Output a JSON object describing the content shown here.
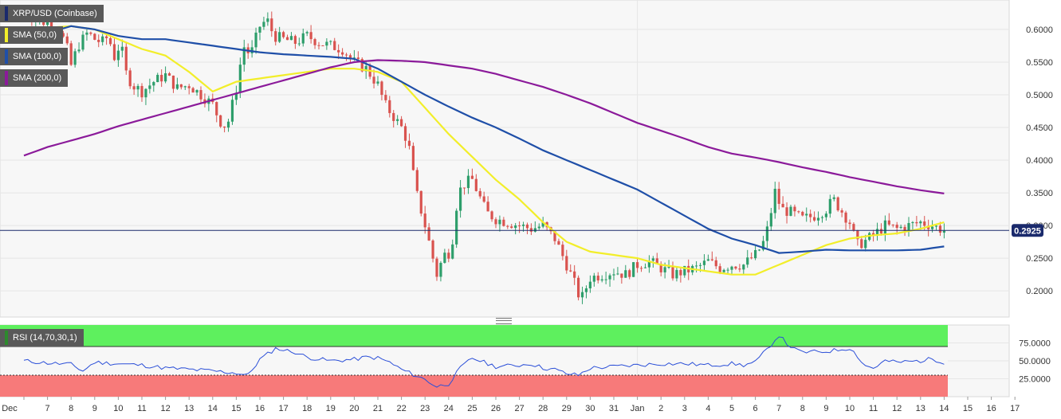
{
  "main_legend": {
    "symbol": "XRP/USD (Coinbase)",
    "sma50": {
      "label": "SMA (50,0)",
      "color": "#f2ee2a"
    },
    "sma100": {
      "label": "SMA (100,0)",
      "color": "#1f4fa8"
    },
    "sma200": {
      "label": "SMA (200,0)",
      "color": "#8b1a9a"
    }
  },
  "rsi_legend": {
    "label": "RSI (14,70,30,1)",
    "color": "#2d8a2d"
  },
  "colors": {
    "up": "#2e9e6b",
    "down": "#d9534f",
    "rsi_line": "#2b4fd8",
    "price_line": "#1a2a6c"
  },
  "chart_data": [
    {
      "type": "candlestick",
      "title": "XRP/USD (Coinbase)",
      "ylim": [
        0.16,
        0.645
      ],
      "y_ticks": [
        0.2,
        0.25,
        0.3,
        0.35,
        0.4,
        0.45,
        0.5,
        0.55,
        0.6
      ],
      "y_tick_labels": [
        "0.2000",
        "0.2500",
        "0.3000",
        "0.3500",
        "0.4000",
        "0.4500",
        "0.5000",
        "0.5500",
        "0.6000"
      ],
      "current_price": 0.2925,
      "current_price_label": "0.2925",
      "x_tick_labels": [
        "Dec",
        "7",
        "8",
        "9",
        "10",
        "11",
        "12",
        "13",
        "14",
        "15",
        "16",
        "17",
        "18",
        "19",
        "20",
        "21",
        "22",
        "23",
        "24",
        "25",
        "26",
        "27",
        "28",
        "29",
        "30",
        "31",
        "Jan",
        "2",
        "3",
        "4",
        "5",
        "6",
        "7",
        "8",
        "9",
        "10",
        "11",
        "12",
        "13",
        "14",
        "15",
        "16",
        "17"
      ],
      "close_path": [
        [
          0,
          0.63
        ],
        [
          0.5,
          0.615
        ],
        [
          1,
          0.61
        ],
        [
          1.5,
          0.6
        ],
        [
          1.8,
          0.575
        ],
        [
          2,
          0.545
        ],
        [
          2.3,
          0.575
        ],
        [
          2.7,
          0.595
        ],
        [
          3,
          0.585
        ],
        [
          3.3,
          0.58
        ],
        [
          3.6,
          0.59
        ],
        [
          3.8,
          0.555
        ],
        [
          4.1,
          0.58
        ],
        [
          4.3,
          0.535
        ],
        [
          4.6,
          0.515
        ],
        [
          5,
          0.505
        ],
        [
          5.5,
          0.52
        ],
        [
          6,
          0.53
        ],
        [
          6.5,
          0.51
        ],
        [
          7,
          0.515
        ],
        [
          7.5,
          0.5
        ],
        [
          8,
          0.485
        ],
        [
          8.3,
          0.46
        ],
        [
          8.6,
          0.45
        ],
        [
          8.8,
          0.48
        ],
        [
          9,
          0.51
        ],
        [
          9.3,
          0.575
        ],
        [
          9.6,
          0.56
        ],
        [
          10,
          0.605
        ],
        [
          10.3,
          0.615
        ],
        [
          10.6,
          0.59
        ],
        [
          11,
          0.585
        ],
        [
          11.5,
          0.58
        ],
        [
          12,
          0.59
        ],
        [
          12.5,
          0.58
        ],
        [
          13,
          0.575
        ],
        [
          13.5,
          0.57
        ],
        [
          14,
          0.55
        ],
        [
          14.5,
          0.54
        ],
        [
          15,
          0.515
        ],
        [
          15.3,
          0.485
        ],
        [
          15.6,
          0.47
        ],
        [
          16,
          0.45
        ],
        [
          16.3,
          0.425
        ],
        [
          16.6,
          0.355
        ],
        [
          17,
          0.3
        ],
        [
          17.3,
          0.255
        ],
        [
          17.5,
          0.225
        ],
        [
          17.8,
          0.255
        ],
        [
          18.1,
          0.26
        ],
        [
          18.4,
          0.35
        ],
        [
          18.7,
          0.365
        ],
        [
          19,
          0.37
        ],
        [
          19.3,
          0.345
        ],
        [
          19.6,
          0.32
        ],
        [
          20,
          0.31
        ],
        [
          20.5,
          0.305
        ],
        [
          21,
          0.3
        ],
        [
          21.5,
          0.295
        ],
        [
          22,
          0.3
        ],
        [
          22.5,
          0.28
        ],
        [
          23,
          0.24
        ],
        [
          23.3,
          0.215
        ],
        [
          23.6,
          0.185
        ],
        [
          24,
          0.22
        ],
        [
          24.5,
          0.225
        ],
        [
          25,
          0.23
        ],
        [
          25.5,
          0.225
        ],
        [
          26,
          0.24
        ],
        [
          26.5,
          0.245
        ],
        [
          27,
          0.235
        ],
        [
          27.5,
          0.225
        ],
        [
          28,
          0.23
        ],
        [
          28.5,
          0.235
        ],
        [
          29,
          0.245
        ],
        [
          29.5,
          0.235
        ],
        [
          30,
          0.24
        ],
        [
          30.5,
          0.24
        ],
        [
          31,
          0.255
        ],
        [
          31.3,
          0.27
        ],
        [
          31.6,
          0.305
        ],
        [
          31.8,
          0.355
        ],
        [
          32.1,
          0.325
        ],
        [
          32.5,
          0.32
        ],
        [
          33,
          0.31
        ],
        [
          33.5,
          0.315
        ],
        [
          34,
          0.325
        ],
        [
          34.3,
          0.34
        ],
        [
          34.6,
          0.325
        ],
        [
          35,
          0.305
        ],
        [
          35.3,
          0.27
        ],
        [
          35.6,
          0.275
        ],
        [
          36,
          0.285
        ],
        [
          36.5,
          0.3
        ],
        [
          37,
          0.295
        ],
        [
          37.5,
          0.3
        ],
        [
          38,
          0.305
        ],
        [
          38.5,
          0.3
        ],
        [
          39,
          0.2925
        ]
      ],
      "series": [
        {
          "name": "SMA (50,0)",
          "points": [
            [
              0,
              0.6
            ],
            [
              2,
              0.605
            ],
            [
              3,
              0.6
            ],
            [
              4,
              0.585
            ],
            [
              5,
              0.57
            ],
            [
              6,
              0.56
            ],
            [
              7,
              0.535
            ],
            [
              8,
              0.505
            ],
            [
              9,
              0.52
            ],
            [
              10,
              0.525
            ],
            [
              11,
              0.53
            ],
            [
              12,
              0.535
            ],
            [
              13,
              0.54
            ],
            [
              14,
              0.54
            ],
            [
              15,
              0.535
            ],
            [
              16,
              0.52
            ],
            [
              17,
              0.48
            ],
            [
              18,
              0.44
            ],
            [
              19,
              0.405
            ],
            [
              20,
              0.37
            ],
            [
              21,
              0.34
            ],
            [
              22,
              0.305
            ],
            [
              23,
              0.275
            ],
            [
              24,
              0.26
            ],
            [
              25,
              0.255
            ],
            [
              26,
              0.25
            ],
            [
              27,
              0.24
            ],
            [
              28,
              0.235
            ],
            [
              29,
              0.23
            ],
            [
              30,
              0.225
            ],
            [
              31,
              0.225
            ],
            [
              32,
              0.24
            ],
            [
              33,
              0.255
            ],
            [
              34,
              0.27
            ],
            [
              35,
              0.28
            ],
            [
              36,
              0.285
            ],
            [
              37,
              0.288
            ],
            [
              38,
              0.295
            ],
            [
              39,
              0.305
            ]
          ]
        },
        {
          "name": "SMA (100,0)",
          "points": [
            [
              0,
              0.58
            ],
            [
              1,
              0.595
            ],
            [
              2,
              0.605
            ],
            [
              3,
              0.6
            ],
            [
              4,
              0.59
            ],
            [
              5,
              0.585
            ],
            [
              6,
              0.585
            ],
            [
              7,
              0.58
            ],
            [
              8,
              0.575
            ],
            [
              9,
              0.57
            ],
            [
              10,
              0.565
            ],
            [
              11,
              0.562
            ],
            [
              12,
              0.56
            ],
            [
              13,
              0.558
            ],
            [
              14,
              0.555
            ],
            [
              15,
              0.54
            ],
            [
              16,
              0.52
            ],
            [
              17,
              0.5
            ],
            [
              18,
              0.482
            ],
            [
              19,
              0.465
            ],
            [
              20,
              0.45
            ],
            [
              21,
              0.433
            ],
            [
              22,
              0.415
            ],
            [
              23,
              0.4
            ],
            [
              24,
              0.385
            ],
            [
              25,
              0.37
            ],
            [
              26,
              0.355
            ],
            [
              27,
              0.335
            ],
            [
              28,
              0.315
            ],
            [
              29,
              0.295
            ],
            [
              30,
              0.28
            ],
            [
              31,
              0.27
            ],
            [
              32,
              0.258
            ],
            [
              33,
              0.26
            ],
            [
              34,
              0.263
            ],
            [
              35,
              0.262
            ],
            [
              36,
              0.262
            ],
            [
              37,
              0.262
            ],
            [
              38,
              0.263
            ],
            [
              39,
              0.268
            ]
          ]
        },
        {
          "name": "SMA (200,0)",
          "points": [
            [
              0,
              0.407
            ],
            [
              1,
              0.42
            ],
            [
              2,
              0.43
            ],
            [
              3,
              0.44
            ],
            [
              4,
              0.452
            ],
            [
              5,
              0.462
            ],
            [
              6,
              0.472
            ],
            [
              7,
              0.482
            ],
            [
              8,
              0.492
            ],
            [
              9,
              0.502
            ],
            [
              10,
              0.512
            ],
            [
              11,
              0.522
            ],
            [
              12,
              0.532
            ],
            [
              13,
              0.542
            ],
            [
              14,
              0.55
            ],
            [
              15,
              0.553
            ],
            [
              16,
              0.552
            ],
            [
              17,
              0.55
            ],
            [
              18,
              0.545
            ],
            [
              19,
              0.54
            ],
            [
              20,
              0.532
            ],
            [
              21,
              0.522
            ],
            [
              22,
              0.512
            ],
            [
              23,
              0.5
            ],
            [
              24,
              0.487
            ],
            [
              25,
              0.472
            ],
            [
              26,
              0.457
            ],
            [
              27,
              0.445
            ],
            [
              28,
              0.433
            ],
            [
              29,
              0.42
            ],
            [
              30,
              0.41
            ],
            [
              31,
              0.404
            ],
            [
              32,
              0.397
            ],
            [
              33,
              0.389
            ],
            [
              34,
              0.382
            ],
            [
              35,
              0.374
            ],
            [
              36,
              0.367
            ],
            [
              37,
              0.36
            ],
            [
              38,
              0.354
            ],
            [
              39,
              0.349
            ]
          ]
        }
      ]
    },
    {
      "type": "line",
      "title": "RSI (14,70,30,1)",
      "ylim": [
        0,
        100
      ],
      "y_ticks": [
        25,
        50,
        75
      ],
      "y_tick_labels": [
        "25.0000",
        "50.0000",
        "75.0000"
      ],
      "bands": {
        "overbought": 70,
        "oversold": 30,
        "overbought_color": "#5ef05e",
        "oversold_color": "#f77a7a"
      },
      "points": [
        [
          0,
          50
        ],
        [
          1,
          47
        ],
        [
          2,
          45
        ],
        [
          2.5,
          36
        ],
        [
          3,
          48
        ],
        [
          4,
          46
        ],
        [
          5,
          44
        ],
        [
          6,
          40
        ],
        [
          7,
          38
        ],
        [
          8,
          36
        ],
        [
          9,
          33
        ],
        [
          9.5,
          30
        ],
        [
          10,
          52
        ],
        [
          10.7,
          68
        ],
        [
          11,
          65
        ],
        [
          11.5,
          62
        ],
        [
          12,
          55
        ],
        [
          13,
          50
        ],
        [
          14,
          52
        ],
        [
          14.5,
          55
        ],
        [
          15,
          54
        ],
        [
          15.5,
          48
        ],
        [
          16,
          38
        ],
        [
          17,
          24
        ],
        [
          17.5,
          14
        ],
        [
          18,
          18
        ],
        [
          18.5,
          40
        ],
        [
          19,
          54
        ],
        [
          19.5,
          48
        ],
        [
          20,
          42
        ],
        [
          21,
          44
        ],
        [
          21.5,
          46
        ],
        [
          22,
          40
        ],
        [
          22.5,
          38
        ],
        [
          23,
          32
        ],
        [
          23.5,
          30
        ],
        [
          24,
          40
        ],
        [
          25,
          42
        ],
        [
          26,
          44
        ],
        [
          27,
          46
        ],
        [
          28,
          46
        ],
        [
          29,
          44
        ],
        [
          30,
          46
        ],
        [
          30.5,
          44
        ],
        [
          31,
          48
        ],
        [
          31.5,
          66
        ],
        [
          32,
          86
        ],
        [
          32.3,
          75
        ],
        [
          32.7,
          65
        ],
        [
          33,
          62
        ],
        [
          34,
          63
        ],
        [
          35,
          68
        ],
        [
          35.3,
          58
        ],
        [
          35.6,
          44
        ],
        [
          36,
          40
        ],
        [
          36.5,
          50
        ],
        [
          37,
          48
        ],
        [
          38,
          50
        ],
        [
          38.5,
          53
        ],
        [
          39,
          48
        ]
      ]
    }
  ]
}
